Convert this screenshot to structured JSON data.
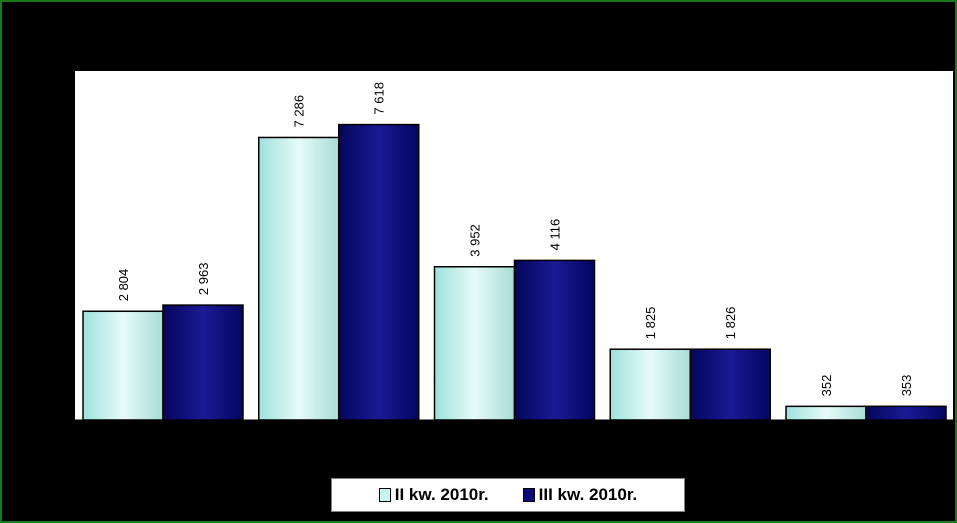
{
  "chart_data": {
    "type": "bar",
    "categories": [
      "",
      "",
      "",
      "",
      ""
    ],
    "series": [
      {
        "name": "II kw. 2010r.",
        "values": [
          2804,
          7286,
          3952,
          1825,
          352
        ],
        "labels": [
          "2 804",
          "7 286",
          "3 952",
          "1 825",
          "352"
        ]
      },
      {
        "name": "III kw. 2010r.",
        "values": [
          2963,
          7618,
          4116,
          1826,
          353
        ],
        "labels": [
          "2 963",
          "7 618",
          "4 116",
          "1 826",
          "353"
        ]
      }
    ],
    "ylim": [
      0,
      9000
    ],
    "grid": false,
    "legend_position": "bottom",
    "xlabel": "",
    "ylabel": ""
  },
  "colors": {
    "series_0": "#c8f4f0",
    "series_1": "#0a0a78",
    "plot_background": "#ffffff",
    "background": "#000000",
    "frame": "#1a7a1a"
  },
  "legend": {
    "item_0": "II kw. 2010r.",
    "item_1": "III kw. 2010r."
  }
}
